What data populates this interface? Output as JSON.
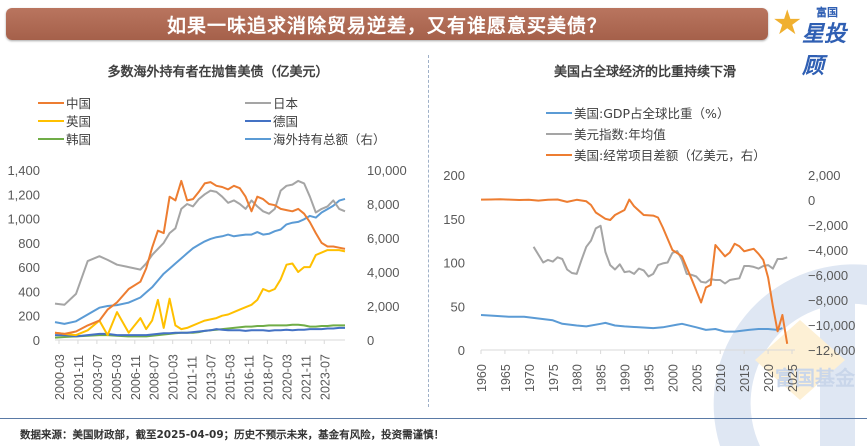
{
  "header": {
    "title": "如果一味追求消除贸易逆差，又有谁愿意买美债？",
    "logo_top": "富国",
    "logo_main": "星投顾"
  },
  "footer": {
    "source": "数据来源：美国财政部，截至2025-04-09；历史不预示未来，基金有风险，投资需谨慎！"
  },
  "watermark": "富国基金",
  "colors": {
    "banner": "#a8634d",
    "china": "#ed7d31",
    "japan": "#a5a5a5",
    "uk": "#ffc000",
    "germany": "#4472c4",
    "korea": "#70ad47",
    "total": "#5b9bd5",
    "gdp_share": "#5b9bd5",
    "dxy": "#a5a5a5",
    "current_account": "#ed7d31"
  },
  "chart_data": [
    {
      "type": "line",
      "title": "多数海外持有者在抛售美债（亿美元）",
      "xlabel": "",
      "ylabel": "",
      "ylim": [
        0,
        1400
      ],
      "y2lim": [
        0,
        10000
      ],
      "yticks": [
        "0",
        "200",
        "400",
        "600",
        "800",
        "1,000",
        "1,200",
        "1,400"
      ],
      "y2ticks": [
        "0",
        "2,000",
        "4,000",
        "6,000",
        "8,000",
        "10,000"
      ],
      "categories": [
        "2000-03",
        "2001-11",
        "2003-07",
        "2005-03",
        "2006-11",
        "2008-07",
        "2010-03",
        "2011-11",
        "2013-07",
        "2015-03",
        "2016-11",
        "2018-07",
        "2020-03",
        "2021-11",
        "2023-07"
      ],
      "x": [
        2000.2,
        2001.0,
        2002.0,
        2003.0,
        2004.0,
        2004.7,
        2005.5,
        2006.5,
        2007.5,
        2008.0,
        2008.5,
        2009.0,
        2009.5,
        2010.0,
        2010.5,
        2011.0,
        2011.5,
        2012.0,
        2012.5,
        2013.0,
        2013.5,
        2014.0,
        2014.5,
        2015.0,
        2015.5,
        2016.0,
        2016.5,
        2017.0,
        2017.5,
        2018.0,
        2018.5,
        2019.0,
        2019.5,
        2020.0,
        2020.5,
        2021.0,
        2021.5,
        2022.0,
        2022.5,
        2023.0,
        2023.5,
        2024.0,
        2024.5,
        2025.0
      ],
      "legend": "top",
      "series": [
        {
          "name": "中国",
          "axis": "left",
          "color_key": "china",
          "values": [
            60,
            50,
            70,
            120,
            160,
            250,
            310,
            420,
            480,
            590,
            760,
            900,
            880,
            1180,
            1150,
            1310,
            1150,
            1160,
            1220,
            1290,
            1300,
            1270,
            1260,
            1240,
            1270,
            1250,
            1180,
            1060,
            1180,
            1160,
            1120,
            1110,
            1080,
            1070,
            1060,
            1080,
            1040,
            970,
            880,
            800,
            770,
            770,
            760,
            750
          ]
        },
        {
          "name": "日本",
          "axis": "left",
          "color_key": "japan",
          "values": [
            300,
            290,
            380,
            650,
            690,
            660,
            620,
            600,
            580,
            630,
            700,
            750,
            800,
            880,
            920,
            1080,
            1120,
            1100,
            1160,
            1200,
            1230,
            1220,
            1180,
            1130,
            1150,
            1120,
            1080,
            1150,
            1100,
            1060,
            1040,
            1080,
            1230,
            1270,
            1280,
            1310,
            1290,
            1180,
            1050,
            1080,
            1100,
            1150,
            1080,
            1060
          ]
        },
        {
          "name": "英国",
          "axis": "left",
          "color_key": "uk",
          "values": [
            60,
            50,
            40,
            80,
            160,
            40,
            230,
            60,
            180,
            90,
            160,
            330,
            100,
            340,
            120,
            90,
            100,
            120,
            140,
            160,
            170,
            180,
            200,
            210,
            230,
            250,
            270,
            290,
            330,
            420,
            400,
            420,
            500,
            620,
            630,
            560,
            600,
            600,
            700,
            720,
            740,
            740,
            740,
            730
          ]
        },
        {
          "name": "德国",
          "axis": "left",
          "color_key": "germany",
          "values": [
            40,
            40,
            30,
            40,
            50,
            50,
            40,
            40,
            40,
            40,
            45,
            50,
            55,
            55,
            60,
            60,
            60,
            65,
            70,
            75,
            80,
            90,
            85,
            80,
            80,
            80,
            75,
            80,
            80,
            80,
            75,
            80,
            80,
            85,
            80,
            85,
            85,
            90,
            90,
            90,
            95,
            95,
            100,
            100
          ]
        },
        {
          "name": "韩国",
          "axis": "left",
          "color_key": "korea",
          "values": [
            20,
            25,
            30,
            35,
            40,
            40,
            35,
            30,
            30,
            30,
            35,
            40,
            45,
            50,
            55,
            60,
            60,
            60,
            65,
            75,
            80,
            85,
            90,
            95,
            100,
            105,
            110,
            110,
            115,
            115,
            120,
            120,
            120,
            120,
            125,
            125,
            120,
            110,
            110,
            115,
            115,
            120,
            120,
            120
          ]
        },
        {
          "name": "海外持有总额（右）",
          "axis": "right",
          "color_key": "total",
          "values": [
            1050,
            950,
            1100,
            1500,
            1900,
            2000,
            2050,
            2200,
            2500,
            2800,
            3100,
            3500,
            3900,
            4200,
            4500,
            4800,
            5100,
            5400,
            5600,
            5800,
            5950,
            6050,
            6100,
            6200,
            6100,
            6150,
            6200,
            6200,
            6350,
            6200,
            6250,
            6400,
            6500,
            6800,
            6900,
            6950,
            7100,
            7300,
            7200,
            7500,
            7700,
            7900,
            8200,
            8300
          ]
        }
      ]
    },
    {
      "type": "line",
      "title": "美国占全球经济的比重持续下滑",
      "xlabel": "",
      "ylabel": "",
      "ylim": [
        0,
        200
      ],
      "y2lim": [
        -12000,
        2000
      ],
      "yticks": [
        "0",
        "50",
        "100",
        "150",
        "200"
      ],
      "y2ticks": [
        "-12,000",
        "-10,000",
        "-8,000",
        "-6,000",
        "-4,000",
        "-2,000",
        "0",
        "2,000"
      ],
      "categories": [
        "1960",
        "1965",
        "1970",
        "1975",
        "1980",
        "1985",
        "1990",
        "1995",
        "2000",
        "2005",
        "2010",
        "2015",
        "2020",
        "2025"
      ],
      "legend": "top",
      "series": [
        {
          "name": "美国:GDP占全球比重（%）",
          "axis": "left",
          "color_key": "gdp_share",
          "x": [
            1960,
            1963,
            1966,
            1969,
            1972,
            1975,
            1977,
            1980,
            1982,
            1985,
            1986,
            1988,
            1990,
            1993,
            1996,
            1998,
            2001,
            2002,
            2005,
            2007,
            2009,
            2011,
            2013,
            2016,
            2018,
            2020,
            2022,
            2023
          ],
          "values": [
            40,
            39,
            38,
            38,
            36,
            34,
            30,
            28,
            27,
            30,
            31,
            28,
            27,
            26,
            25,
            26,
            29,
            30,
            26,
            23,
            24,
            21,
            21,
            23,
            24,
            24,
            23,
            25
          ]
        },
        {
          "name": "美元指数:年均值",
          "axis": "left",
          "color_key": "dxy",
          "x": [
            1971,
            1973,
            1974,
            1975,
            1976,
            1977,
            1978,
            1979,
            1980,
            1981,
            1982,
            1983,
            1984,
            1985,
            1986,
            1987,
            1988,
            1989,
            1990,
            1991,
            1992,
            1993,
            1994,
            1995,
            1996,
            1997,
            1998,
            1999,
            2000,
            2001,
            2002,
            2003,
            2004,
            2005,
            2006,
            2007,
            2008,
            2009,
            2010,
            2011,
            2012,
            2013,
            2014,
            2015,
            2016,
            2017,
            2018,
            2019,
            2020,
            2021,
            2022,
            2023,
            2024
          ],
          "values": [
            118,
            100,
            103,
            101,
            106,
            104,
            92,
            88,
            87,
            103,
            118,
            125,
            139,
            142,
            112,
            97,
            92,
            98,
            89,
            90,
            87,
            93,
            91,
            84,
            87,
            97,
            99,
            100,
            111,
            113,
            103,
            87,
            86,
            84,
            78,
            77,
            81,
            80,
            80,
            76,
            80,
            81,
            82,
            96,
            96,
            95,
            93,
            96,
            97,
            93,
            104,
            104,
            106
          ]
        },
        {
          "name": "美国:经常项目差额（亿美元，右）",
          "axis": "right",
          "color_key": "current_account",
          "x": [
            1960,
            1962,
            1964,
            1966,
            1968,
            1970,
            1972,
            1974,
            1976,
            1978,
            1980,
            1982,
            1983,
            1984,
            1986,
            1987,
            1988,
            1990,
            1991,
            1992,
            1994,
            1996,
            1997,
            1998,
            2000,
            2002,
            2004,
            2006,
            2007,
            2008,
            2009,
            2011,
            2012,
            2013,
            2014,
            2015,
            2016,
            2017,
            2018,
            2019,
            2020,
            2021,
            2022,
            2023,
            2024
          ],
          "values": [
            30,
            40,
            60,
            30,
            0,
            20,
            -50,
            20,
            40,
            -150,
            20,
            -100,
            -400,
            -1000,
            -1500,
            -1600,
            -1200,
            -800,
            30,
            -500,
            -1200,
            -1250,
            -1400,
            -2200,
            -4000,
            -4500,
            -6300,
            -8200,
            -7000,
            -6800,
            -3600,
            -4500,
            -4200,
            -3500,
            -3700,
            -4100,
            -4000,
            -3900,
            -4300,
            -4800,
            -6200,
            -8500,
            -10500,
            -9200,
            -11500
          ]
        }
      ]
    }
  ]
}
